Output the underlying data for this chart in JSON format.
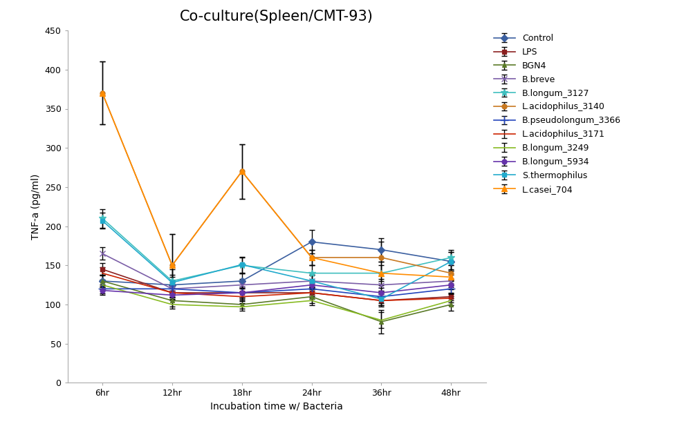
{
  "title": "Co-culture(Spleen/CMT-93)",
  "xlabel": "Incubation time w/ Bacteria",
  "ylabel": "TNF-a (pg/ml)",
  "x_labels": [
    "6hr",
    "12hr",
    "18hr",
    "24hr",
    "36hr",
    "48hr"
  ],
  "ylim": [
    0,
    450
  ],
  "yticks": [
    0,
    50,
    100,
    150,
    200,
    250,
    300,
    350,
    400,
    450
  ],
  "series": [
    {
      "label": "Control",
      "color": "#3B5FA0",
      "marker": "D",
      "marker_size": 5,
      "values": [
        130,
        125,
        130,
        180,
        170,
        155
      ],
      "errors": [
        8,
        10,
        10,
        15,
        15,
        12
      ]
    },
    {
      "label": "LPS",
      "color": "#8B2020",
      "marker": "s",
      "marker_size": 5,
      "values": [
        145,
        115,
        115,
        115,
        105,
        110
      ],
      "errors": [
        8,
        8,
        8,
        8,
        8,
        5
      ]
    },
    {
      "label": "BGN4",
      "color": "#5A7A28",
      "marker": "^",
      "marker_size": 5,
      "values": [
        130,
        105,
        100,
        110,
        78,
        100
      ],
      "errors": [
        8,
        8,
        5,
        8,
        15,
        8
      ]
    },
    {
      "label": "B.breve",
      "color": "#7B5EA7",
      "marker": "x",
      "marker_size": 6,
      "values": [
        165,
        120,
        125,
        130,
        125,
        130
      ],
      "errors": [
        8,
        8,
        8,
        8,
        8,
        8
      ]
    },
    {
      "label": "B.longum_3127",
      "color": "#40BFBF",
      "marker": "*",
      "marker_size": 7,
      "values": [
        210,
        130,
        150,
        140,
        140,
        160
      ],
      "errors": [
        12,
        15,
        10,
        10,
        15,
        10
      ]
    },
    {
      "label": "L.acidophilus_3140",
      "color": "#C87820",
      "marker": "o",
      "marker_size": 5,
      "values": [
        370,
        150,
        270,
        160,
        160,
        140
      ],
      "errors": [
        40,
        40,
        35,
        10,
        20,
        10
      ]
    },
    {
      "label": "B.pseudolongum_3366",
      "color": "#2244BB",
      "marker": "+",
      "marker_size": 8,
      "values": [
        120,
        120,
        115,
        120,
        110,
        120
      ],
      "errors": [
        6,
        6,
        6,
        8,
        8,
        6
      ]
    },
    {
      "label": "L.acidophilus_3171",
      "color": "#CC2200",
      "marker": "None",
      "marker_size": 5,
      "values": [
        140,
        115,
        110,
        115,
        105,
        108
      ],
      "errors": [
        8,
        6,
        6,
        6,
        6,
        5
      ]
    },
    {
      "label": "B.longum_3249",
      "color": "#88BB22",
      "marker": "None",
      "marker_size": 5,
      "values": [
        125,
        100,
        97,
        105,
        80,
        105
      ],
      "errors": [
        6,
        5,
        5,
        6,
        10,
        6
      ]
    },
    {
      "label": "B.longum_5934",
      "color": "#6633AA",
      "marker": "o",
      "marker_size": 5,
      "values": [
        118,
        112,
        115,
        125,
        115,
        125
      ],
      "errors": [
        6,
        6,
        6,
        6,
        6,
        6
      ]
    },
    {
      "label": "S.thermophilus",
      "color": "#22AACC",
      "marker": "s",
      "marker_size": 5,
      "values": [
        207,
        128,
        151,
        130,
        107,
        155
      ],
      "errors": [
        10,
        10,
        10,
        8,
        8,
        12
      ]
    },
    {
      "label": "L.casei_704",
      "color": "#FF8C00",
      "marker": "^",
      "marker_size": 6,
      "values": [
        370,
        150,
        270,
        160,
        140,
        135
      ],
      "errors": [
        40,
        40,
        35,
        10,
        10,
        10
      ]
    }
  ],
  "background_color": "#FFFFFF",
  "plot_bg_color": "#FFFFFF",
  "title_fontsize": 15,
  "label_fontsize": 10,
  "tick_fontsize": 9,
  "legend_fontsize": 9
}
